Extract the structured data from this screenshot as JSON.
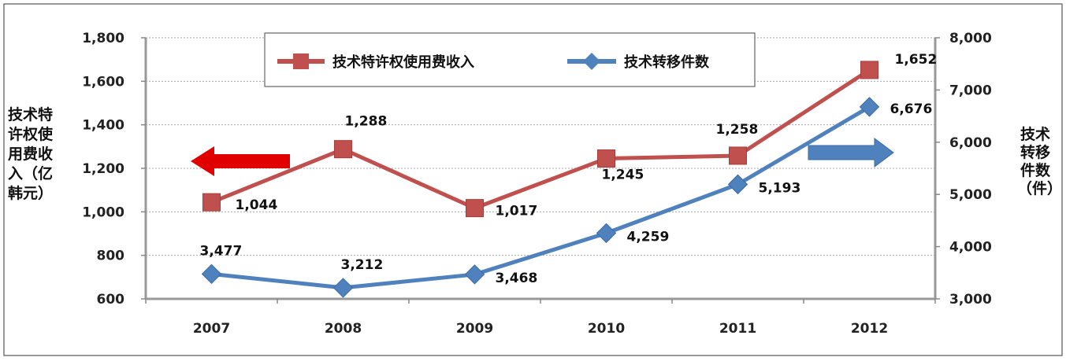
{
  "chart_data": {
    "type": "line",
    "categories": [
      "2007",
      "2008",
      "2009",
      "2010",
      "2011",
      "2012"
    ],
    "series": [
      {
        "name": "技术特许权使用费收入",
        "axis": "left",
        "color": "#c0504d",
        "marker": "square",
        "values": [
          1044,
          1288,
          1017,
          1245,
          1258,
          1652
        ],
        "labels": [
          "1,044",
          "1,288",
          "1,017",
          "1,245",
          "1,258",
          "1,652"
        ]
      },
      {
        "name": "技术转移件数",
        "axis": "right",
        "color": "#4f81bd",
        "marker": "diamond",
        "values": [
          3477,
          3212,
          3468,
          4259,
          5193,
          6676
        ],
        "labels": [
          "3,477",
          "3,212",
          "3,468",
          "4,259",
          "5,193",
          "6,676"
        ]
      }
    ],
    "y_left": {
      "label_lines": [
        "技术特",
        "许权使",
        "用费收",
        "入（亿",
        "韩元）"
      ],
      "ylim": [
        600,
        1800
      ],
      "ticks": [
        "600",
        "800",
        "1,000",
        "1,200",
        "1,400",
        "1,600",
        "1,800"
      ]
    },
    "y_right": {
      "label_lines": [
        "技术",
        "转移",
        "件数",
        "（件）"
      ],
      "ylim": [
        3000,
        8000
      ],
      "ticks": [
        "3,000",
        "4,000",
        "5,000",
        "6,000",
        "7,000",
        "8,000"
      ]
    },
    "grid": true,
    "legend_position": "top-center",
    "annotations": [
      {
        "shape": "arrow-left",
        "color": "#e00000",
        "meaning": "left axis"
      },
      {
        "shape": "arrow-right",
        "color": "#4f81bd",
        "meaning": "right axis"
      }
    ]
  }
}
